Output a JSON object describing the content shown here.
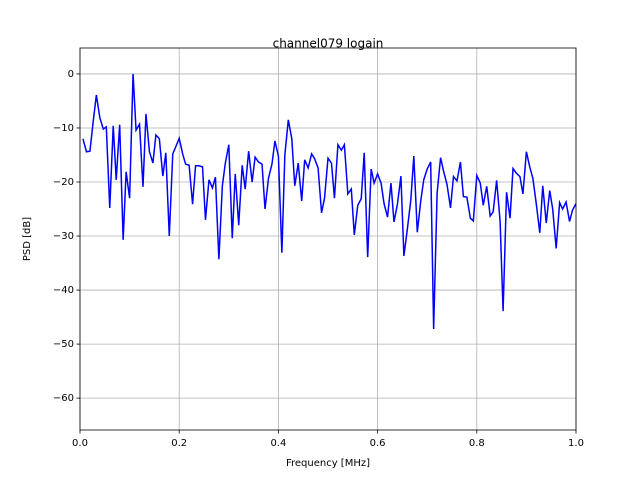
{
  "chart_data": {
    "type": "line",
    "title": "channel079 logain",
    "xlabel": "Frequency [MHz]",
    "ylabel": "PSD [dB]",
    "color": "#0000ff",
    "grid": true,
    "xlim": [
      0,
      1
    ],
    "ylim": [
      -65.9,
      4.8
    ],
    "xticks": [
      {
        "value": 0,
        "label": "0.0"
      },
      0.2,
      0.4,
      0.6,
      0.8,
      {
        "value": 1,
        "label": "1.0"
      }
    ],
    "yticks": [
      0,
      {
        "value": -10,
        "label": "−10"
      },
      {
        "value": -20,
        "label": "−20"
      },
      {
        "value": -30,
        "label": "−30"
      },
      {
        "value": -40,
        "label": "−40"
      },
      {
        "value": -50,
        "label": "−50"
      },
      {
        "value": -60,
        "label": "−60"
      }
    ],
    "x": [
      0.006,
      0.013,
      0.02,
      0.027,
      0.033,
      0.04,
      0.047,
      0.053,
      0.06,
      0.067,
      0.073,
      0.08,
      0.087,
      0.093,
      0.1,
      0.107,
      0.113,
      0.12,
      0.127,
      0.133,
      0.14,
      0.147,
      0.153,
      0.16,
      0.167,
      0.173,
      0.18,
      0.187,
      0.193,
      0.2,
      0.207,
      0.213,
      0.22,
      0.227,
      0.233,
      0.24,
      0.247,
      0.253,
      0.26,
      0.267,
      0.273,
      0.28,
      0.287,
      0.293,
      0.3,
      0.307,
      0.313,
      0.32,
      0.327,
      0.333,
      0.34,
      0.347,
      0.353,
      0.36,
      0.367,
      0.373,
      0.38,
      0.387,
      0.393,
      0.4,
      0.407,
      0.413,
      0.42,
      0.427,
      0.433,
      0.44,
      0.447,
      0.453,
      0.46,
      0.467,
      0.473,
      0.48,
      0.487,
      0.493,
      0.5,
      0.507,
      0.513,
      0.52,
      0.527,
      0.533,
      0.54,
      0.547,
      0.553,
      0.56,
      0.567,
      0.573,
      0.58,
      0.587,
      0.593,
      0.6,
      0.607,
      0.613,
      0.62,
      0.627,
      0.633,
      0.64,
      0.647,
      0.653,
      0.66,
      0.667,
      0.673,
      0.68,
      0.687,
      0.693,
      0.7,
      0.707,
      0.713,
      0.72,
      0.727,
      0.733,
      0.74,
      0.747,
      0.753,
      0.76,
      0.767,
      0.773,
      0.78,
      0.787,
      0.793,
      0.8,
      0.807,
      0.813,
      0.82,
      0.827,
      0.833,
      0.84,
      0.847,
      0.853,
      0.86,
      0.867,
      0.873,
      0.88,
      0.887,
      0.893,
      0.9,
      0.907,
      0.913,
      0.92,
      0.927,
      0.933,
      0.94,
      0.947,
      0.953,
      0.96,
      0.967,
      0.973,
      0.98,
      0.987,
      0.993,
      1.0
    ],
    "values": [
      -12,
      -14.4,
      -14.3,
      -8.5,
      -3.9,
      -8.1,
      -10.2,
      -9.8,
      -24.8,
      -9.6,
      -19.6,
      -9.4,
      -30.7,
      -18.1,
      -23,
      0,
      -10.4,
      -9.3,
      -20.9,
      -7.4,
      -14.4,
      -16.5,
      -11.3,
      -12,
      -18.9,
      -14.6,
      -30,
      -14.8,
      -13.5,
      -11.9,
      -14.8,
      -16.7,
      -16.9,
      -24.1,
      -17,
      -17,
      -17.2,
      -27,
      -19.6,
      -21.1,
      -19.1,
      -34.3,
      -20.7,
      -16.5,
      -13.1,
      -30.4,
      -18.5,
      -28,
      -16.9,
      -21.3,
      -14.3,
      -20,
      -15.4,
      -16.3,
      -16.7,
      -25,
      -19.3,
      -16.7,
      -12.4,
      -15.2,
      -33.1,
      -15,
      -8.5,
      -12,
      -20.7,
      -16.5,
      -23.5,
      -15.9,
      -17.4,
      -14.8,
      -15.7,
      -17.4,
      -25.7,
      -23,
      -15.6,
      -16.5,
      -23,
      -13.1,
      -14.1,
      -13.1,
      -22.2,
      -21.3,
      -29.8,
      -24.3,
      -23.1,
      -14.6,
      -33.9,
      -17.6,
      -20.2,
      -18.5,
      -20.2,
      -24,
      -26.5,
      -20.2,
      -27.4,
      -24.1,
      -18.9,
      -33.7,
      -28.7,
      -23.3,
      -15.2,
      -29.3,
      -23.5,
      -19.6,
      -17.6,
      -16.3,
      -47.2,
      -22,
      -15.5,
      -18,
      -20.5,
      -24.8,
      -19,
      -19.8,
      -16.3,
      -22.7,
      -22.8,
      -26.7,
      -27.2,
      -18.8,
      -20.2,
      -24.3,
      -20.8,
      -26.3,
      -25.5,
      -19.7,
      -27.3,
      -43.9,
      -21.9,
      -26.7,
      -17.5,
      -18.4,
      -19,
      -22.2,
      -14.4,
      -17.3,
      -19.3,
      -24.1,
      -29.4,
      -20.7,
      -27.6,
      -21.6,
      -25,
      -32.3,
      -23.8,
      -25,
      -23.7,
      -27.3,
      -25.2,
      -24
    ]
  }
}
